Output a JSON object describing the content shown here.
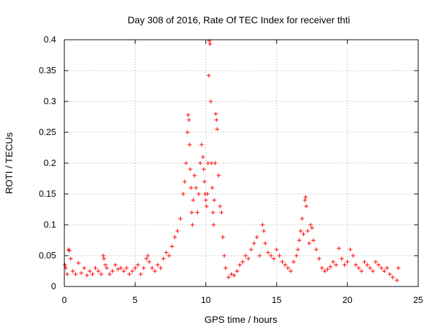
{
  "chart_data": {
    "type": "scatter",
    "title": "Day 308 of 2016, Rate Of TEC Index for receiver thti",
    "xlabel": "GPS time / hours",
    "ylabel": "ROTI / TECUs",
    "xlim": [
      0,
      25
    ],
    "ylim": [
      0,
      0.4
    ],
    "xticks": [
      "0",
      "5",
      "10",
      "15",
      "20",
      "25"
    ],
    "yticks": [
      "0",
      "0.05",
      "0.1",
      "0.15",
      "0.2",
      "0.25",
      "0.3",
      "0.35",
      "0.4"
    ],
    "grid": true,
    "marker": "+",
    "color": "#ff0000",
    "series": [
      {
        "x": [
          0.05,
          0.1,
          0.2,
          0.3,
          0.35,
          0.45,
          0.6,
          0.8,
          1.0,
          1.2,
          1.4,
          1.6,
          1.8,
          2.0,
          2.2,
          2.4,
          2.6,
          2.75,
          2.8,
          2.9,
          3.0,
          3.2,
          3.4,
          3.6,
          3.8,
          4.0,
          4.2,
          4.4,
          4.6,
          4.8,
          5.0,
          5.2,
          5.4,
          5.6,
          5.8,
          5.9,
          6.0,
          6.2,
          6.4,
          6.6,
          6.8,
          7.0,
          7.2,
          7.4,
          7.6,
          7.8,
          8.0,
          8.2,
          8.4,
          8.5,
          8.6,
          8.7,
          8.75,
          8.8,
          8.85,
          8.9,
          8.95,
          9.0,
          9.05,
          9.1,
          9.2,
          9.3,
          9.4,
          9.5,
          9.6,
          9.7,
          9.8,
          9.85,
          9.9,
          9.95,
          10.0,
          10.05,
          10.1,
          10.15,
          10.2,
          10.25,
          10.3,
          10.35,
          10.4,
          10.45,
          10.5,
          10.55,
          10.6,
          10.65,
          10.7,
          10.75,
          10.8,
          10.9,
          11.0,
          11.1,
          11.2,
          11.3,
          11.4,
          11.6,
          11.8,
          12.0,
          12.2,
          12.4,
          12.6,
          12.8,
          13.0,
          13.2,
          13.4,
          13.6,
          13.8,
          14.0,
          14.1,
          14.2,
          14.4,
          14.6,
          14.8,
          15.0,
          15.2,
          15.4,
          15.6,
          15.8,
          16.0,
          16.2,
          16.4,
          16.5,
          16.6,
          16.7,
          16.8,
          16.9,
          17.0,
          17.05,
          17.1,
          17.2,
          17.3,
          17.4,
          17.5,
          17.6,
          17.8,
          18.0,
          18.2,
          18.4,
          18.6,
          18.8,
          19.0,
          19.2,
          19.4,
          19.6,
          19.8,
          20.0,
          20.2,
          20.4,
          20.6,
          20.8,
          21.0,
          21.2,
          21.4,
          21.6,
          21.8,
          22.0,
          22.2,
          22.4,
          22.6,
          22.8,
          23.0,
          23.2,
          23.5,
          23.6
        ],
        "y": [
          0.035,
          0.03,
          0.02,
          0.06,
          0.058,
          0.045,
          0.025,
          0.02,
          0.038,
          0.022,
          0.03,
          0.018,
          0.025,
          0.02,
          0.03,
          0.025,
          0.02,
          0.05,
          0.045,
          0.035,
          0.03,
          0.02,
          0.025,
          0.035,
          0.028,
          0.03,
          0.025,
          0.03,
          0.02,
          0.025,
          0.03,
          0.035,
          0.02,
          0.03,
          0.045,
          0.05,
          0.04,
          0.03,
          0.025,
          0.035,
          0.03,
          0.045,
          0.055,
          0.05,
          0.065,
          0.08,
          0.09,
          0.11,
          0.15,
          0.17,
          0.2,
          0.25,
          0.278,
          0.27,
          0.23,
          0.19,
          0.16,
          0.12,
          0.1,
          0.14,
          0.18,
          0.16,
          0.12,
          0.15,
          0.2,
          0.23,
          0.21,
          0.19,
          0.17,
          0.15,
          0.14,
          0.13,
          0.15,
          0.2,
          0.342,
          0.398,
          0.393,
          0.3,
          0.2,
          0.16,
          0.12,
          0.1,
          0.14,
          0.2,
          0.28,
          0.27,
          0.255,
          0.18,
          0.13,
          0.12,
          0.08,
          0.05,
          0.03,
          0.015,
          0.02,
          0.018,
          0.025,
          0.035,
          0.04,
          0.05,
          0.045,
          0.06,
          0.07,
          0.08,
          0.05,
          0.1,
          0.09,
          0.07,
          0.055,
          0.05,
          0.045,
          0.06,
          0.05,
          0.04,
          0.035,
          0.03,
          0.025,
          0.04,
          0.05,
          0.06,
          0.075,
          0.09,
          0.11,
          0.085,
          0.14,
          0.145,
          0.13,
          0.09,
          0.07,
          0.1,
          0.095,
          0.075,
          0.06,
          0.045,
          0.03,
          0.025,
          0.028,
          0.032,
          0.04,
          0.035,
          0.062,
          0.045,
          0.035,
          0.04,
          0.06,
          0.05,
          0.035,
          0.03,
          0.025,
          0.04,
          0.035,
          0.03,
          0.025,
          0.04,
          0.035,
          0.03,
          0.025,
          0.03,
          0.02,
          0.015,
          0.01,
          0.03
        ]
      }
    ]
  }
}
